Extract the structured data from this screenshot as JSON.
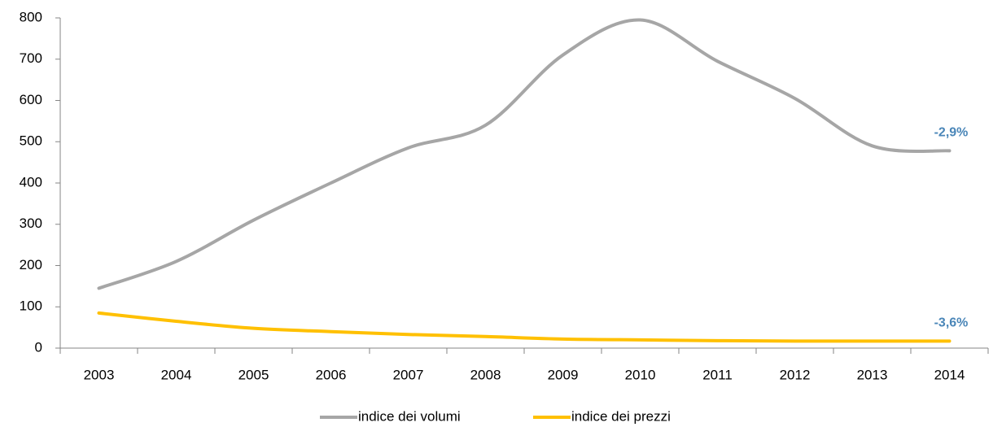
{
  "chart_data": {
    "type": "line",
    "categories": [
      "2003",
      "2004",
      "2005",
      "2006",
      "2007",
      "2008",
      "2009",
      "2010",
      "2011",
      "2012",
      "2013",
      "2014"
    ],
    "series": [
      {
        "name": "indice dei volumi",
        "color": "#a6a6a6",
        "values": [
          145,
          210,
          310,
          400,
          485,
          540,
          710,
          795,
          695,
          605,
          490,
          478
        ]
      },
      {
        "name": "indice dei prezzi",
        "color": "#ffc000",
        "values": [
          85,
          65,
          48,
          40,
          33,
          28,
          22,
          20,
          18,
          17,
          17,
          17
        ]
      }
    ],
    "annotations": [
      "-2,9%",
      "-3,6%"
    ],
    "ylim": [
      0,
      800
    ],
    "yticks": [
      0,
      100,
      200,
      300,
      400,
      500,
      600,
      700,
      800
    ],
    "legend": "bottom",
    "smooth": true
  }
}
